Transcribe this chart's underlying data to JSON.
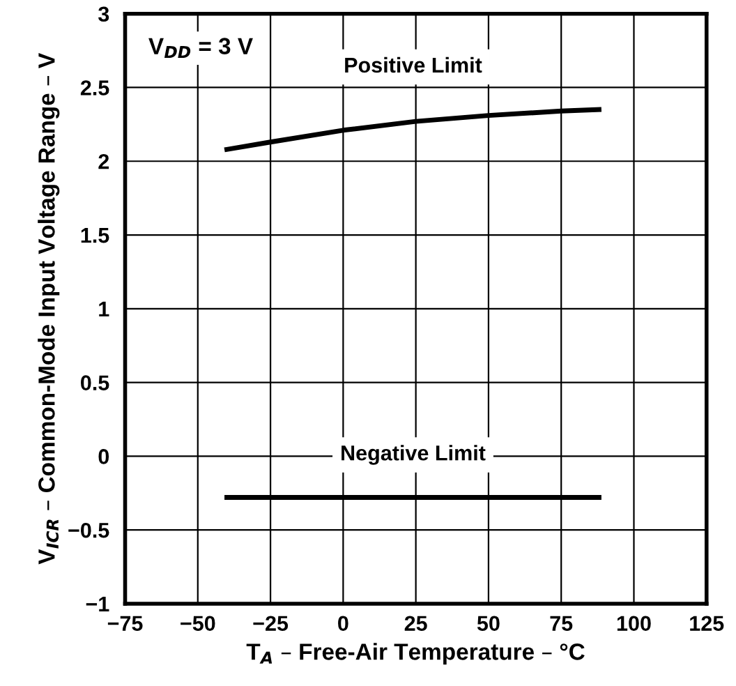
{
  "chart_data": {
    "type": "line",
    "xlabel": "T$_{A}$ – Free-Air Temperature – °C",
    "ylabel": "V$_{ICR}$ – Common-Mode Input Voltage Range – V",
    "series": [
      {
        "name": "Positive Limit",
        "color": "#000000",
        "x": [
          -40,
          -25,
          0,
          25,
          50,
          75,
          88
        ],
        "values": [
          2.08,
          2.13,
          2.21,
          2.27,
          2.31,
          2.34,
          2.35
        ]
      },
      {
        "name": "Negative Limit",
        "color": "#000000",
        "x": [
          -40,
          0,
          50,
          88
        ],
        "values": [
          -0.28,
          -0.28,
          -0.28,
          -0.28
        ]
      }
    ],
    "annotations": [
      "V$_{DD}$ = 3 V"
    ],
    "xlim": [
      -75,
      125
    ],
    "xticks": [
      -75,
      -50,
      -25,
      0,
      25,
      50,
      75,
      100,
      125
    ],
    "ylim": [
      -1,
      3
    ],
    "yticks": [
      -1,
      -0.5,
      0,
      0.5,
      1,
      1.5,
      2,
      2.5,
      3
    ],
    "grid": true,
    "legend": false,
    "marker": "none",
    "line_style": "solid"
  }
}
